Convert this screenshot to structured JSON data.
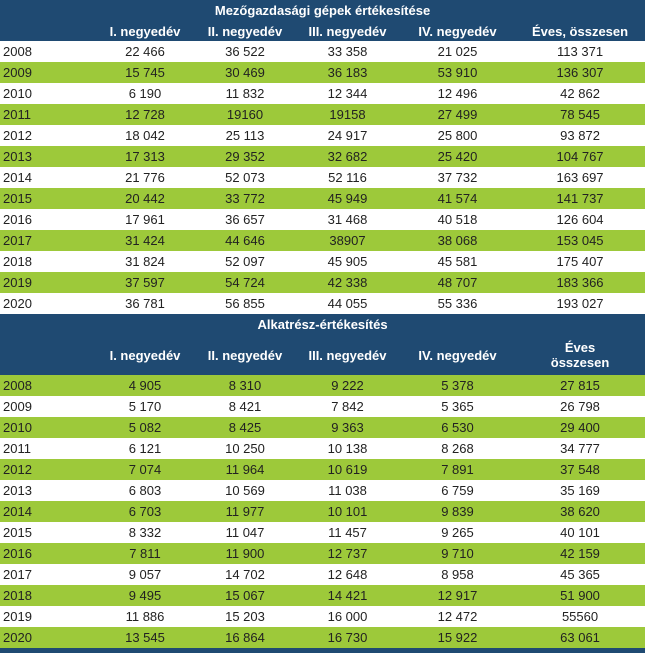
{
  "colors": {
    "header": "#1f4a72",
    "stripe": "#9dc93a"
  },
  "tables": [
    {
      "title": "Mezőgazdasági gépek értékesítése",
      "headers": [
        "I. negyedév",
        "II. negyedév",
        "III. negyedév",
        "IV. negyedév",
        "Éves, összesen"
      ],
      "green_first": false,
      "rows": [
        [
          "2008",
          "22 466",
          "36 522",
          "33 358",
          "21 025",
          "113 371"
        ],
        [
          "2009",
          "15 745",
          "30 469",
          "36 183",
          "53 910",
          "136 307"
        ],
        [
          "2010",
          "6 190",
          "11 832",
          "12 344",
          "12 496",
          "42 862"
        ],
        [
          "2011",
          "12 728",
          "19160",
          "19158",
          "27 499",
          "78 545"
        ],
        [
          "2012",
          "18 042",
          "25 113",
          "24 917",
          "25 800",
          "93 872"
        ],
        [
          "2013",
          "17 313",
          "29 352",
          "32 682",
          "25 420",
          "104 767"
        ],
        [
          "2014",
          "21 776",
          "52 073",
          "52 116",
          "37 732",
          "163 697"
        ],
        [
          "2015",
          "20 442",
          "33 772",
          "45 949",
          "41 574",
          "141 737"
        ],
        [
          "2016",
          "17 961",
          "36 657",
          "31 468",
          "40 518",
          "126 604"
        ],
        [
          "2017",
          "31 424",
          "44 646",
          "38907",
          "38 068",
          "153 045"
        ],
        [
          "2018",
          "31 824",
          "52 097",
          "45 905",
          "45 581",
          "175 407"
        ],
        [
          "2019",
          "37 597",
          "54 724",
          "42 338",
          "48 707",
          "183 366"
        ],
        [
          "2020",
          "36 781",
          "56 855",
          "44 055",
          "55 336",
          "193 027"
        ]
      ]
    },
    {
      "title": "Alkatrész-értékesítés",
      "headers": [
        "I. negyedév",
        "II. negyedév",
        "III. negyedév",
        "IV. negyedév",
        "Éves összesen"
      ],
      "green_first": true,
      "rows": [
        [
          "2008",
          "4 905",
          "8 310",
          "9 222",
          "5 378",
          "27 815"
        ],
        [
          "2009",
          "5 170",
          "8 421",
          "7 842",
          "5 365",
          "26 798"
        ],
        [
          "2010",
          "5 082",
          "8 425",
          "9 363",
          "6 530",
          "29 400"
        ],
        [
          "2011",
          "6 121",
          "10 250",
          "10 138",
          "8 268",
          "34 777"
        ],
        [
          "2012",
          "7 074",
          "11 964",
          "10 619",
          "7 891",
          "37 548"
        ],
        [
          "2013",
          "6 803",
          "10 569",
          "11 038",
          "6 759",
          "35 169"
        ],
        [
          "2014",
          "6 703",
          "11 977",
          "10 101",
          "9 839",
          "38 620"
        ],
        [
          "2015",
          "8 332",
          "11 047",
          "11 457",
          "9 265",
          "40 101"
        ],
        [
          "2016",
          "7 811",
          "11 900",
          "12 737",
          "9 710",
          "42 159"
        ],
        [
          "2017",
          "9 057",
          "14 702",
          "12 648",
          "8 958",
          "45 365"
        ],
        [
          "2018",
          "9 495",
          "15 067",
          "14 421",
          "12 917",
          "51 900"
        ],
        [
          "2019",
          "11 886",
          "15 203",
          "16 000",
          "12 472",
          "55560"
        ],
        [
          "2020",
          "13 545",
          "16 864",
          "16 730",
          "15 922",
          "63 061"
        ]
      ]
    }
  ]
}
